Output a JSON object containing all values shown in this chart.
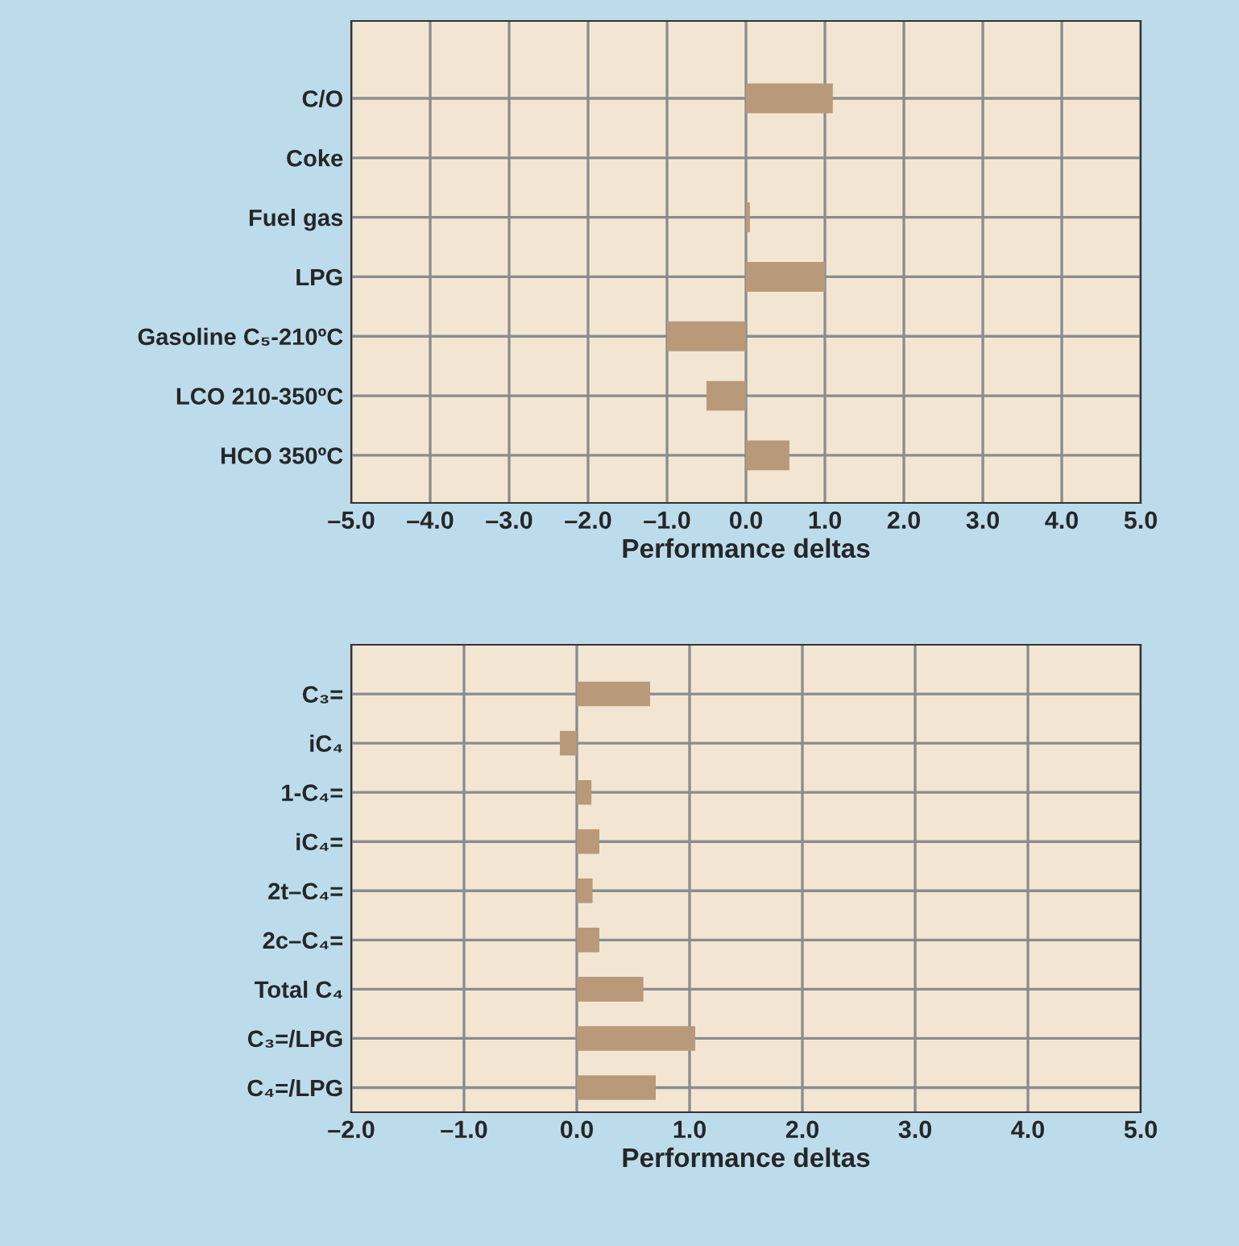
{
  "chart_data": [
    {
      "type": "bar",
      "orientation": "horizontal",
      "xlabel": "Performance deltas",
      "categories": [
        "C/O",
        "Coke",
        "Fuel gas",
        "LPG",
        "Gasoline C₅-210ºC",
        "LCO 210-350ºC",
        "HCO 350ºC"
      ],
      "series": [
        {
          "color": "#b8997a",
          "values": [
            1.1,
            0,
            0.05,
            1.0,
            -1.0,
            -0.5,
            0.55
          ]
        }
      ],
      "xlim": [
        -5,
        5
      ],
      "xticks": [
        {
          "value": -5,
          "label": "–5.0"
        },
        {
          "value": -4,
          "label": "–4.0"
        },
        {
          "value": -3,
          "label": "–3.0"
        },
        {
          "value": -2,
          "label": "–2.0"
        },
        {
          "value": -1,
          "label": "–1.0"
        },
        {
          "value": 0,
          "label": "0.0"
        },
        {
          "value": 1,
          "label": "1.0"
        },
        {
          "value": 2,
          "label": "2.0"
        },
        {
          "value": 3,
          "label": "3.0"
        },
        {
          "value": 4,
          "label": "4.0"
        },
        {
          "value": 5,
          "label": "5.0"
        }
      ],
      "grid": true,
      "legend": false
    },
    {
      "type": "bar",
      "orientation": "horizontal",
      "xlabel": "Performance deltas",
      "categories": [
        "C₃=",
        "iC₄",
        "1-C₄=",
        "iC₄=",
        "2t–C₄=",
        "2c–C₄=",
        "Total C₄",
        "C₃=/LPG",
        "C₄=/LPG"
      ],
      "series": [
        {
          "color": "#b8997a",
          "values": [
            0.65,
            -0.15,
            0.13,
            0.2,
            0.14,
            0.2,
            0.59,
            1.05,
            0.7
          ]
        }
      ],
      "xlim": [
        -2,
        5
      ],
      "xticks": [
        {
          "value": -2,
          "label": "–2.0"
        },
        {
          "value": -1,
          "label": "–1.0"
        },
        {
          "value": 0,
          "label": "0.0"
        },
        {
          "value": 1,
          "label": "1.0"
        },
        {
          "value": 2,
          "label": "2.0"
        },
        {
          "value": 3,
          "label": "3.0"
        },
        {
          "value": 4,
          "label": "4.0"
        },
        {
          "value": 5,
          "label": "5.0"
        }
      ],
      "grid": true,
      "legend": false
    }
  ]
}
